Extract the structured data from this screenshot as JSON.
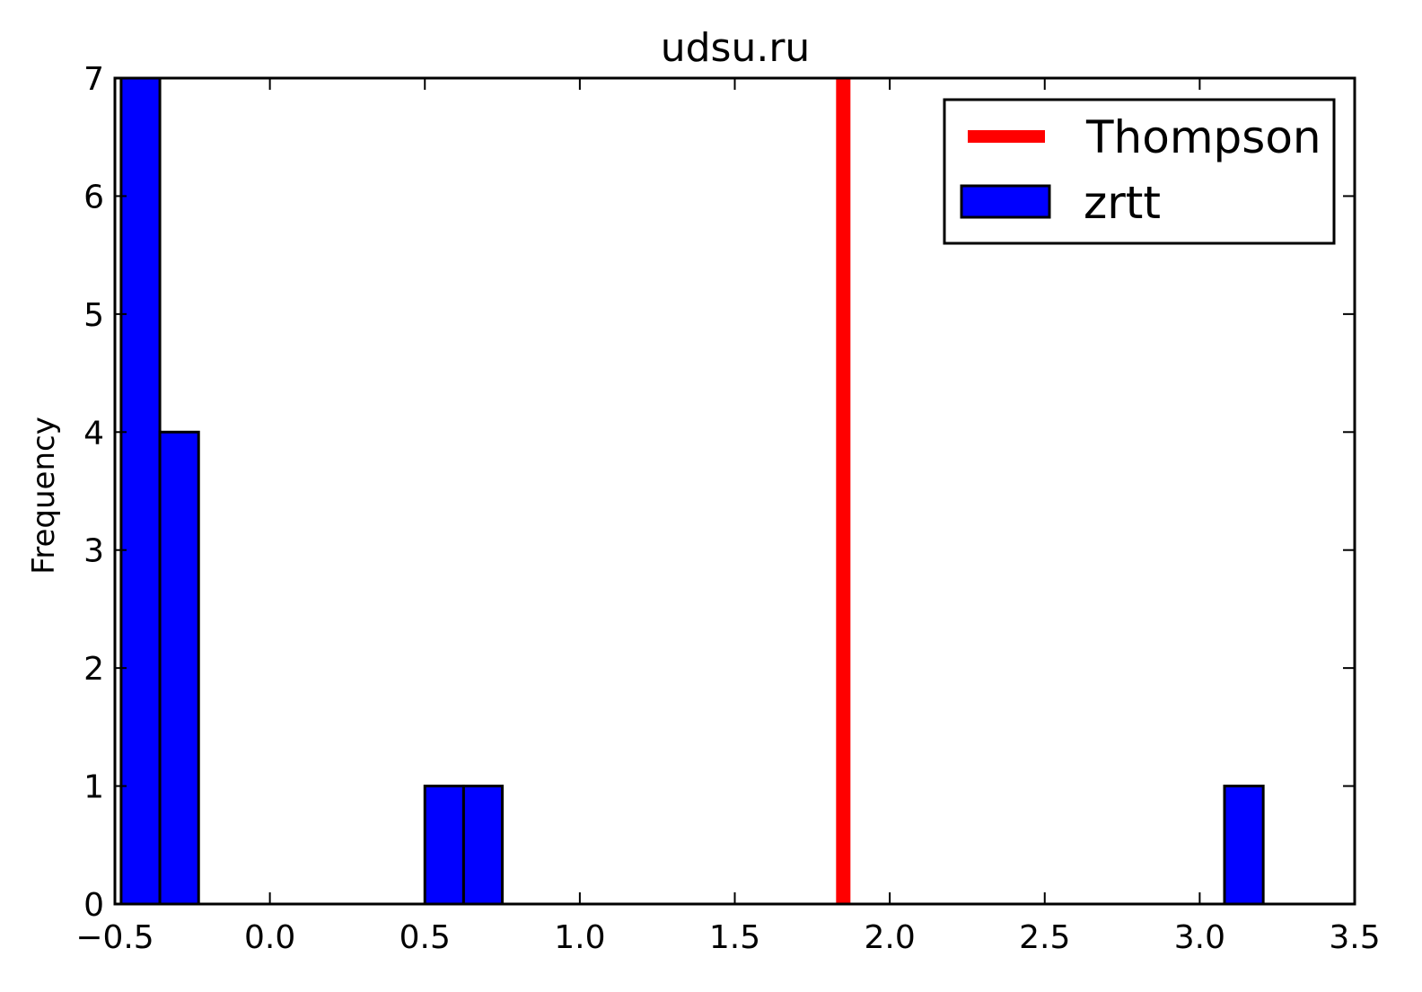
{
  "chart_data": {
    "type": "bar",
    "title": "udsu.ru",
    "xlabel": "",
    "ylabel": "Frequency",
    "xlim": [
      -0.5,
      3.5
    ],
    "ylim": [
      0,
      7
    ],
    "x_ticks": [
      "−0.5",
      "0.0",
      "0.5",
      "1.0",
      "1.5",
      "2.0",
      "2.5",
      "3.0",
      "3.5"
    ],
    "y_ticks": [
      "0",
      "1",
      "2",
      "3",
      "4",
      "5",
      "6",
      "7"
    ],
    "grid": false,
    "legend_position": "top-right",
    "series": [
      {
        "name": "zrtt",
        "kind": "histogram",
        "color": "#0000ff",
        "edge_color": "#000000",
        "bins": [
          {
            "x0": -0.48,
            "x1": -0.355,
            "count": 7
          },
          {
            "x0": -0.355,
            "x1": -0.23,
            "count": 4
          },
          {
            "x0": 0.5,
            "x1": 0.625,
            "count": 1
          },
          {
            "x0": 0.625,
            "x1": 0.75,
            "count": 1
          },
          {
            "x0": 3.08,
            "x1": 3.205,
            "count": 1
          }
        ]
      },
      {
        "name": "Thompson",
        "kind": "vline",
        "color": "#ff0000",
        "x": 1.85
      }
    ]
  }
}
